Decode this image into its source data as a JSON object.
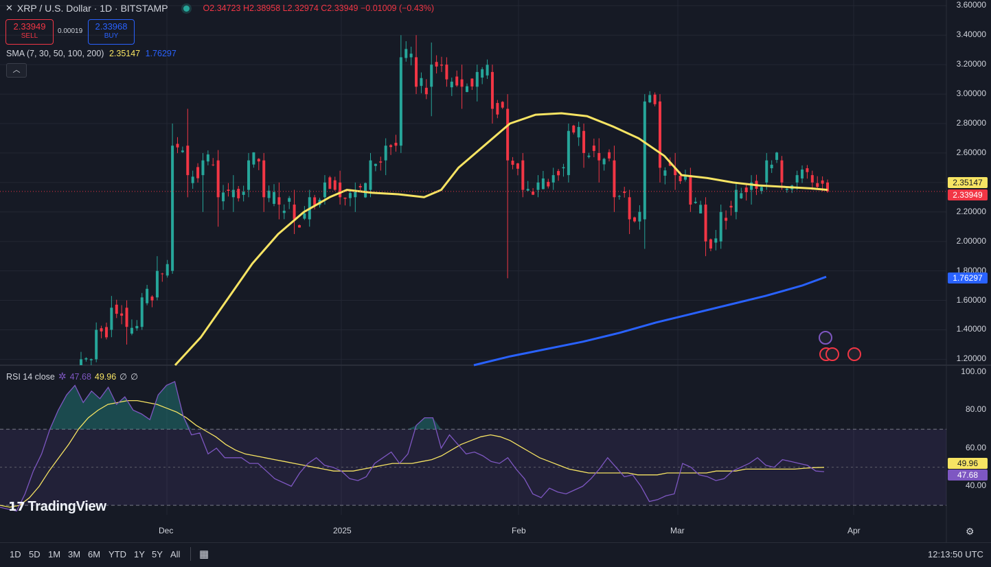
{
  "header": {
    "close_icon": "close-icon",
    "symbol": "XRP / U.S. Dollar · 1D · BITSTAMP",
    "open": "O2.34723",
    "high": "H2.38958",
    "low": "L2.32974",
    "close": "C2.33949",
    "change": "−0.01009 (−0.43%)",
    "status_color": "#26a69a"
  },
  "trade": {
    "sell_price": "2.33949",
    "sell_label": "SELL",
    "spread": "0.00019",
    "buy_price": "2.33968",
    "buy_label": "BUY"
  },
  "sma": {
    "label": "SMA (7, 30, 50, 100, 200)",
    "value1": "2.35147",
    "value2": "1.76297"
  },
  "collapse_icon": "chevron-up-icon",
  "rsi": {
    "label": "RSI 14 close",
    "value": "47.68",
    "ma_value": "49.96",
    "extra1": "∅",
    "extra2": "∅"
  },
  "price_axis": [
    "3.60000",
    "3.40000",
    "3.20000",
    "3.00000",
    "2.80000",
    "2.60000",
    "2.40000",
    "2.20000",
    "2.00000",
    "1.80000",
    "1.60000",
    "1.40000",
    "1.20000"
  ],
  "rsi_axis": [
    "100.00",
    "80.00",
    "60.00",
    "40.00"
  ],
  "price_tags": {
    "sma": "2.35147",
    "last": "2.33949",
    "sma2": "1.76297"
  },
  "rsi_tags": {
    "ma": "49.96",
    "rsi": "47.68"
  },
  "time_axis": [
    "Dec",
    "2025",
    "Feb",
    "Mar",
    "Apr"
  ],
  "logo": "TradingView",
  "ranges": [
    "1D",
    "5D",
    "1M",
    "3M",
    "6M",
    "YTD",
    "1Y",
    "5Y",
    "All"
  ],
  "calendar_icon": "calendar-icon",
  "settings_icon": "gear-icon",
  "clock": "12:13:50 UTC",
  "colors": {
    "up": "#26a69a",
    "down": "#f23645",
    "sma_yellow": "#f7e463",
    "sma_blue": "#2962ff",
    "rsi": "#7e57c2"
  },
  "chart_data": {
    "type": "candlestick",
    "x_unit": "day",
    "ohlc_keypoints": [
      [
        1.1,
        1.25,
        1.05,
        1.2
      ],
      [
        1.2,
        1.45,
        1.18,
        1.4
      ],
      [
        1.4,
        1.63,
        1.35,
        1.55
      ],
      [
        1.55,
        1.6,
        1.3,
        1.42
      ],
      [
        1.42,
        1.65,
        1.4,
        1.62
      ],
      [
        1.62,
        1.9,
        1.6,
        1.8
      ],
      [
        1.8,
        2.8,
        1.78,
        2.65
      ],
      [
        2.65,
        2.9,
        2.3,
        2.45
      ],
      [
        2.45,
        2.6,
        2.2,
        2.55
      ],
      [
        2.55,
        2.62,
        2.1,
        2.3
      ],
      [
        2.3,
        2.45,
        2.2,
        2.35
      ],
      [
        2.35,
        2.6,
        2.3,
        2.55
      ],
      [
        2.55,
        2.6,
        2.2,
        2.3
      ],
      [
        2.3,
        2.4,
        2.15,
        2.25
      ],
      [
        2.25,
        2.35,
        2.05,
        2.15
      ],
      [
        2.15,
        2.35,
        2.1,
        2.3
      ],
      [
        2.3,
        2.45,
        2.25,
        2.4
      ],
      [
        2.4,
        2.48,
        2.25,
        2.3
      ],
      [
        2.3,
        2.4,
        2.2,
        2.35
      ],
      [
        2.35,
        2.6,
        2.3,
        2.55
      ],
      [
        2.55,
        2.7,
        2.45,
        2.65
      ],
      [
        2.65,
        3.4,
        2.6,
        3.25
      ],
      [
        3.25,
        3.4,
        3.0,
        3.05
      ],
      [
        3.05,
        3.35,
        2.85,
        3.2
      ],
      [
        3.2,
        3.25,
        3.05,
        3.1
      ],
      [
        3.1,
        3.2,
        2.9,
        3.05
      ],
      [
        3.05,
        3.2,
        2.95,
        3.15
      ],
      [
        3.15,
        3.2,
        2.8,
        2.9
      ],
      [
        2.9,
        3.0,
        1.75,
        2.55
      ],
      [
        2.55,
        2.6,
        2.3,
        2.35
      ],
      [
        2.35,
        2.45,
        2.3,
        2.4
      ],
      [
        2.4,
        2.5,
        2.35,
        2.45
      ],
      [
        2.45,
        2.8,
        2.4,
        2.75
      ],
      [
        2.75,
        2.8,
        2.5,
        2.6
      ],
      [
        2.6,
        2.7,
        2.4,
        2.55
      ],
      [
        2.55,
        2.65,
        2.2,
        2.3
      ],
      [
        2.3,
        2.35,
        2.05,
        2.15
      ],
      [
        2.15,
        3.0,
        1.95,
        2.95
      ],
      [
        2.95,
        3.0,
        2.4,
        2.5
      ],
      [
        2.5,
        2.6,
        2.35,
        2.45
      ],
      [
        2.45,
        2.5,
        2.2,
        2.25
      ],
      [
        2.25,
        2.3,
        1.9,
        2.0
      ],
      [
        2.0,
        2.25,
        1.95,
        2.2
      ],
      [
        2.2,
        2.4,
        2.15,
        2.35
      ],
      [
        2.35,
        2.45,
        2.25,
        2.4
      ],
      [
        2.4,
        2.6,
        2.35,
        2.55
      ],
      [
        2.55,
        2.58,
        2.35,
        2.4
      ],
      [
        2.4,
        2.48,
        2.35,
        2.45
      ],
      [
        2.45,
        2.48,
        2.35,
        2.4
      ],
      [
        2.4,
        2.42,
        2.33,
        2.339
      ]
    ],
    "series": [
      {
        "name": "SMA",
        "value": 2.35147
      },
      {
        "name": "SMA",
        "value": 1.76297
      },
      {
        "name": "RSI 14 close",
        "value": 47.68
      },
      {
        "name": "RSI MA",
        "value": 49.96
      }
    ],
    "y_range": [
      1.16,
      3.62
    ],
    "rsi_range": [
      25,
      100
    ],
    "rsi_bands": [
      30,
      70,
      50
    ],
    "sma_yellow_keypoints": [
      [
        1.16,
        0
      ],
      [
        1.35,
        3
      ],
      [
        1.6,
        6
      ],
      [
        1.85,
        9
      ],
      [
        2.05,
        12
      ],
      [
        2.2,
        15
      ],
      [
        2.3,
        18
      ],
      [
        2.35,
        20
      ],
      [
        2.33,
        23
      ],
      [
        2.32,
        26
      ],
      [
        2.3,
        29
      ],
      [
        2.35,
        31
      ],
      [
        2.5,
        33
      ],
      [
        2.65,
        36
      ],
      [
        2.8,
        39
      ],
      [
        2.86,
        42
      ],
      [
        2.87,
        45
      ],
      [
        2.85,
        48
      ],
      [
        2.78,
        51
      ],
      [
        2.7,
        54
      ],
      [
        2.58,
        57
      ],
      [
        2.45,
        59
      ],
      [
        2.43,
        62
      ],
      [
        2.4,
        65
      ],
      [
        2.38,
        68
      ],
      [
        2.37,
        71
      ],
      [
        2.36,
        74
      ],
      [
        2.35,
        76
      ]
    ],
    "sma_blue_keypoints": [
      [
        1.16,
        0
      ],
      [
        1.22,
        6
      ],
      [
        1.27,
        12
      ],
      [
        1.32,
        18
      ],
      [
        1.38,
        24
      ],
      [
        1.45,
        30
      ],
      [
        1.51,
        36
      ],
      [
        1.57,
        42
      ],
      [
        1.63,
        48
      ],
      [
        1.7,
        54
      ],
      [
        1.76,
        58
      ]
    ],
    "rsi_keypoints": [
      29,
      28,
      27,
      36,
      48,
      57,
      70,
      80,
      88,
      93,
      84,
      90,
      86,
      92,
      83,
      87,
      80,
      78,
      75,
      88,
      93,
      95,
      77,
      67,
      68,
      57,
      60,
      55,
      55,
      55,
      52,
      52,
      48,
      44,
      42,
      40,
      47,
      52,
      55,
      51,
      50,
      48,
      44,
      43,
      45,
      52,
      55,
      58,
      52,
      57,
      72,
      76,
      76,
      60,
      67,
      62,
      57,
      58,
      56,
      53,
      52,
      55,
      49,
      44,
      36,
      34,
      39,
      37,
      36,
      38,
      40,
      44,
      49,
      55,
      50,
      45,
      46,
      40,
      32,
      33,
      35,
      36,
      52,
      50,
      46,
      45,
      43,
      44,
      48,
      50,
      52,
      55,
      51,
      50,
      54,
      53,
      52,
      51,
      48,
      47.68
    ],
    "rsi_ma_keypoints": [
      30,
      29,
      30,
      34,
      40,
      48,
      55,
      62,
      70,
      76,
      80,
      83,
      84,
      85,
      85,
      84,
      83,
      81,
      79,
      76,
      72,
      69,
      66,
      62,
      59,
      57,
      56,
      55,
      54,
      53,
      52,
      51,
      50,
      49,
      48,
      48,
      48,
      49,
      50,
      51,
      52,
      52,
      52,
      53,
      54,
      56,
      59,
      62,
      64,
      66,
      67,
      66,
      64,
      61,
      58,
      55,
      53,
      51,
      49,
      48,
      47,
      47,
      47,
      47,
      47,
      46,
      46,
      46,
      47,
      47,
      47,
      47,
      47,
      48,
      48,
      48,
      49,
      49,
      49,
      49,
      49,
      49,
      49.5,
      49.8,
      49.96
    ]
  }
}
